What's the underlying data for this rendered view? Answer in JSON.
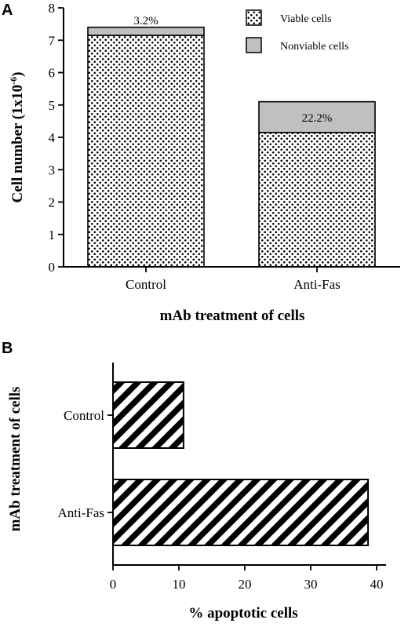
{
  "chart_data": [
    {
      "panel": "A",
      "type": "bar",
      "stacked": true,
      "categories": [
        "Control",
        "Anti-Fas"
      ],
      "series": [
        {
          "name": "Viable cells",
          "values": [
            7.15,
            4.15
          ],
          "pattern": "dots",
          "color": "#000000"
        },
        {
          "name": "Nonviable cells",
          "values": [
            0.25,
            0.95
          ],
          "pattern": "solid",
          "color": "#c0c0c0"
        }
      ],
      "annotations": [
        "3.2%",
        "22.2%"
      ],
      "xlabel": "mAb treatment of cells",
      "ylabel": "Cell number (1x10",
      "ylabel_superscript": "-6",
      "ylabel_suffix": ")",
      "ylim": [
        0,
        8
      ],
      "yticks": [
        "0",
        "1",
        "2",
        "3",
        "4",
        "5",
        "6",
        "7",
        "8"
      ],
      "legend_placement": "top-right"
    },
    {
      "panel": "B",
      "type": "bar",
      "orientation": "horizontal",
      "categories": [
        "Control",
        "Anti-Fas"
      ],
      "values": [
        10.7,
        38.7
      ],
      "pattern": "diagonal-hatch",
      "xlabel": "% apoptotic cells",
      "ylabel": "mAb treatment of cells",
      "xlim": [
        0,
        40
      ],
      "xticks": [
        "0",
        "10",
        "20",
        "30",
        "40"
      ]
    }
  ]
}
